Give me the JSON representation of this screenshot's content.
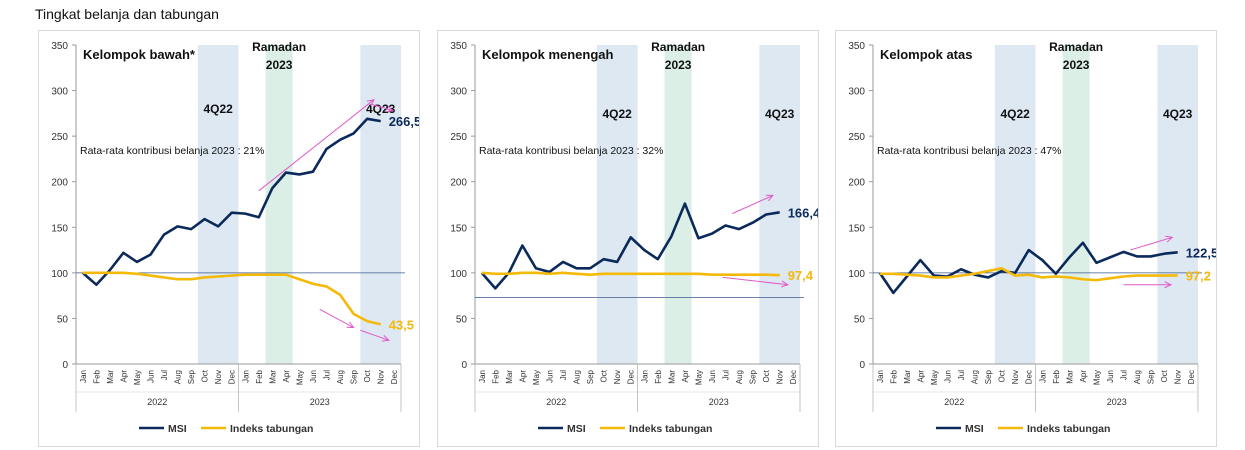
{
  "title": "Tingkat belanja dan tabungan",
  "chart_data": [
    {
      "type": "line",
      "title": "Kelompok bawah*",
      "annotation": "Rata-rata kontribusi belanja 2023 : 21%",
      "ylim": [
        0,
        350
      ],
      "yticks": [
        0,
        50,
        100,
        150,
        200,
        250,
        300,
        350
      ],
      "reference_line": 100,
      "categories": [
        "Jan",
        "Feb",
        "Mar",
        "Apr",
        "May",
        "Jun",
        "Jul",
        "Aug",
        "Sep",
        "Oct",
        "Nov",
        "Dec",
        "Jan",
        "Feb",
        "Mar",
        "Apr",
        "May",
        "Jun",
        "Jul",
        "Aug",
        "Sep",
        "Oct",
        "Nov",
        "Dec"
      ],
      "years": [
        "2022",
        "2023"
      ],
      "bands": [
        {
          "label": "4Q22",
          "from": 9,
          "to": 11,
          "color": "#dde8f3"
        },
        {
          "label": "Ramadan\n2023",
          "from": 14,
          "to": 15,
          "color": "#dcefe6"
        },
        {
          "label": "4Q23",
          "from": 21,
          "to": 23,
          "color": "#dde8f3"
        }
      ],
      "series": [
        {
          "name": "MSI",
          "color": "#0b2a5b",
          "values": [
            100,
            87,
            103,
            122,
            112,
            120,
            142,
            151,
            148,
            159,
            151,
            166,
            165,
            161,
            193,
            210,
            208,
            211,
            236,
            246,
            253,
            269,
            266.5,
            null
          ],
          "end_label": "266,5"
        },
        {
          "name": "Indeks tabungan",
          "color": "#f5b90a",
          "values": [
            100,
            100,
            100,
            100,
            99,
            97,
            95,
            93,
            93,
            95,
            96,
            97,
            98,
            98,
            98,
            98,
            93,
            88,
            85,
            76,
            55,
            47,
            43.5,
            null
          ],
          "end_label": "43,5"
        }
      ],
      "legend": "bottom"
    },
    {
      "type": "line",
      "title": "Kelompok menengah",
      "annotation": "Rata-rata kontribusi belanja 2023 : 32%",
      "ylim": [
        0,
        350
      ],
      "yticks": [
        0,
        50,
        100,
        150,
        200,
        250,
        300,
        350
      ],
      "reference_line": 73,
      "categories": [
        "Jan",
        "Feb",
        "Mar",
        "Apr",
        "May",
        "Jun",
        "Jul",
        "Aug",
        "Sep",
        "Oct",
        "Nov",
        "Dec",
        "Jan",
        "Feb",
        "Mar",
        "Apr",
        "May",
        "Jun",
        "Jul",
        "Aug",
        "Sep",
        "Oct",
        "Nov",
        "Dec"
      ],
      "years": [
        "2022",
        "2023"
      ],
      "bands": [
        {
          "label": "4Q22",
          "from": 9,
          "to": 11,
          "color": "#dde8f3"
        },
        {
          "label": "Ramadan\n2023",
          "from": 14,
          "to": 15,
          "color": "#dcefe6"
        },
        {
          "label": "4Q23",
          "from": 21,
          "to": 23,
          "color": "#dde8f3"
        }
      ],
      "series": [
        {
          "name": "MSI",
          "color": "#0b2a5b",
          "values": [
            100,
            83,
            100,
            130,
            105,
            101,
            112,
            105,
            105,
            115,
            112,
            139,
            125,
            115,
            140,
            176,
            138,
            143,
            152,
            148,
            155,
            164,
            166.4,
            null
          ],
          "end_label": "166,4"
        },
        {
          "name": "Indeks tabungan",
          "color": "#f5b90a",
          "values": [
            100,
            99,
            99,
            100,
            100,
            99,
            100,
            99,
            98,
            99,
            99,
            99,
            99,
            99,
            99,
            99,
            99,
            98,
            98,
            98,
            98,
            98,
            97.4,
            null
          ],
          "end_label": "97,4"
        }
      ],
      "legend": "bottom"
    },
    {
      "type": "line",
      "title": "Kelompok atas",
      "annotation": "Rata-rata kontribusi belanja 2023 : 47%",
      "ylim": [
        0,
        350
      ],
      "yticks": [
        0,
        50,
        100,
        150,
        200,
        250,
        300,
        350
      ],
      "reference_line": 100,
      "categories": [
        "Jan",
        "Feb",
        "Mar",
        "Apr",
        "May",
        "Jun",
        "Jul",
        "Aug",
        "Sep",
        "Oct",
        "Nov",
        "Dec",
        "Jan",
        "Feb",
        "Mar",
        "Apr",
        "May",
        "Jun",
        "Jul",
        "Aug",
        "Sep",
        "Oct",
        "Nov",
        "Dec"
      ],
      "years": [
        "2022",
        "2023"
      ],
      "bands": [
        {
          "label": "4Q22",
          "from": 9,
          "to": 11,
          "color": "#dde8f3"
        },
        {
          "label": "Ramadan\n2023",
          "from": 14,
          "to": 15,
          "color": "#dcefe6"
        },
        {
          "label": "4Q23",
          "from": 21,
          "to": 23,
          "color": "#dde8f3"
        }
      ],
      "series": [
        {
          "name": "MSI",
          "color": "#0b2a5b",
          "values": [
            100,
            78,
            96,
            114,
            97,
            96,
            104,
            98,
            95,
            102,
            100,
            125,
            114,
            99,
            117,
            133,
            111,
            117,
            123,
            118,
            118,
            121,
            122.5,
            null
          ],
          "end_label": "122,5"
        },
        {
          "name": "Indeks tabungan",
          "color": "#f5b90a",
          "values": [
            99,
            99,
            98,
            97,
            95,
            95,
            97,
            99,
            102,
            105,
            97,
            98,
            95,
            96,
            95,
            93,
            92,
            94,
            96,
            97,
            97,
            97,
            97.2,
            null
          ],
          "end_label": "97,2"
        }
      ],
      "legend": "bottom"
    }
  ],
  "colors": {
    "arrow": "#e05ac8",
    "axis": "#9a9a9a",
    "text": "#111111"
  }
}
